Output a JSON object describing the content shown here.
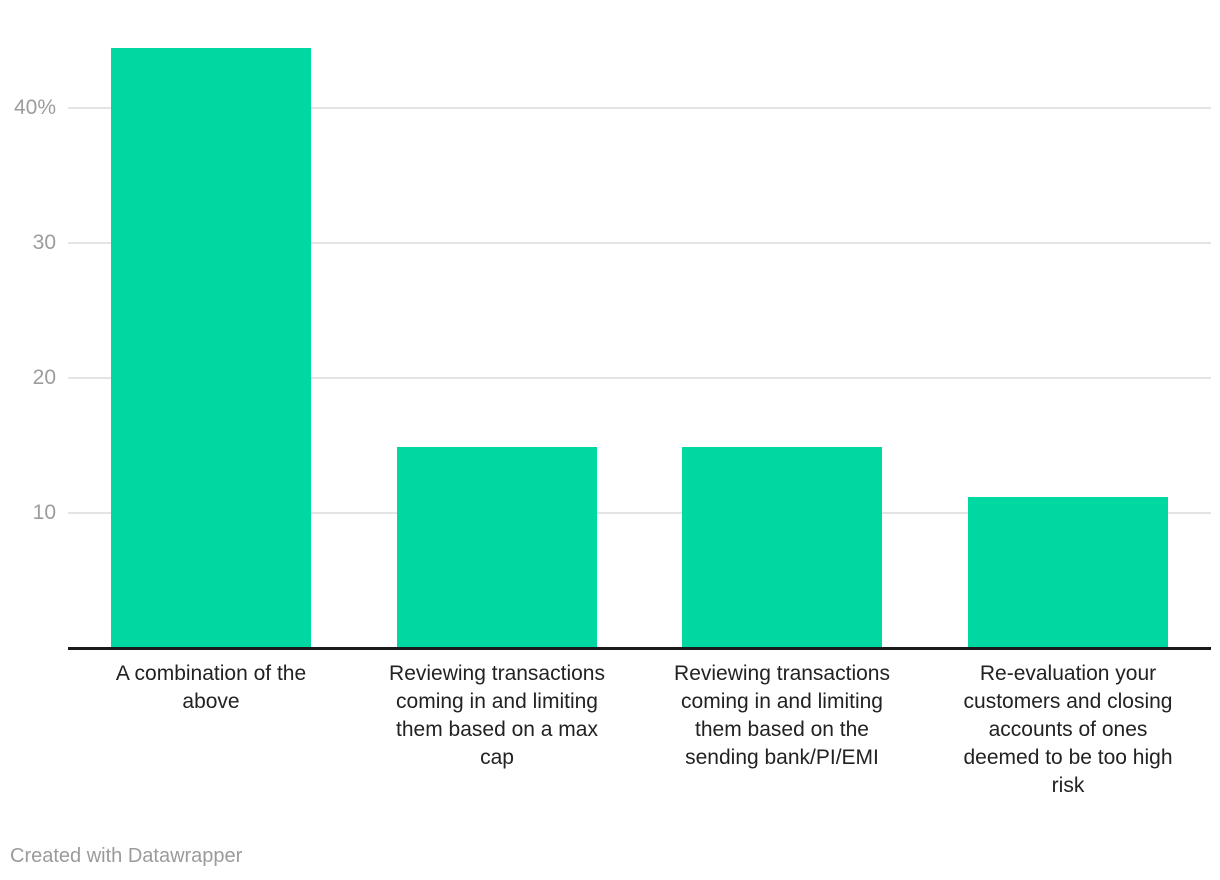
{
  "footer": {
    "credit": "Created with Datawrapper"
  },
  "colors": {
    "bar": "#00d8a2",
    "gridline": "#e4e4e4",
    "axis_line": "#1a1a1a",
    "tick_label": "#9c9c9c",
    "category_label": "#222222",
    "credit_text": "#9b9b9b",
    "background": "#ffffff"
  },
  "chart_data": {
    "type": "bar",
    "title": "",
    "xlabel": "",
    "ylabel": "",
    "categories": [
      "A combination of the above",
      "Reviewing transactions coming in and limiting them based on a max cap",
      "Reviewing transactions coming in and limiting them based on the sending bank/PI/EMI",
      "Re-evaluation your customers and closing accounts of ones deemed to be too high risk"
    ],
    "category_lines": [
      [
        "A combination of the",
        "above"
      ],
      [
        "Reviewing transactions",
        "coming in and limiting",
        "them based on a max",
        "cap"
      ],
      [
        "Reviewing transactions",
        "coming in and limiting",
        "them based on the",
        "sending bank/PI/EMI"
      ],
      [
        "Re-evaluation your",
        "customers and closing",
        "accounts of ones",
        "deemed to be too high",
        "risk"
      ]
    ],
    "values": [
      44.4,
      14.8,
      14.8,
      11.1
    ],
    "unit": "%",
    "ylim": [
      0,
      45
    ],
    "yticks": [
      {
        "value": 10,
        "label": "10"
      },
      {
        "value": 20,
        "label": "20"
      },
      {
        "value": 30,
        "label": "30"
      },
      {
        "value": 40,
        "label": "40%"
      }
    ],
    "grid": "horizontal",
    "legend": "none",
    "bar_color": "#00d8a2"
  }
}
